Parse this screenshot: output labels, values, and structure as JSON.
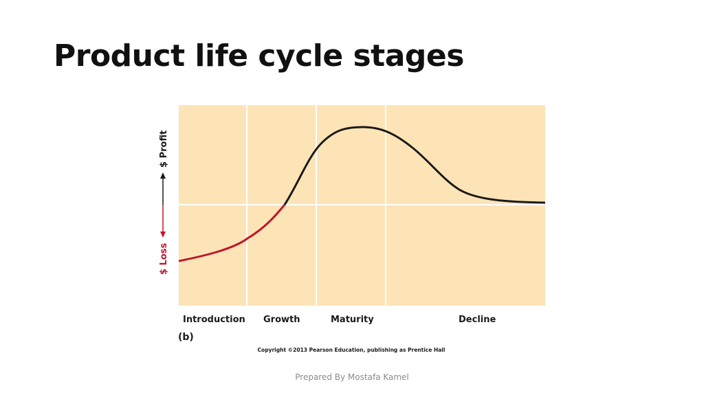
{
  "slide": {
    "title": "Product life cycle stages",
    "footer": "Prepared By Mostafa Kamel"
  },
  "diagram": {
    "y_axis": {
      "profit_label": "$ Profit",
      "loss_label": "$ Loss"
    },
    "stages": [
      "Introduction",
      "Growth",
      "Maturity",
      "Decline"
    ],
    "panel_label": "(b)",
    "copyright": "Copyright ©2013 Pearson Education, publishing as Prentice Hall",
    "colors": {
      "background": "#fde4b6",
      "gridline": "#ffffff",
      "profit_curve": "#1a1a1a",
      "loss_curve": "#c0162c"
    }
  }
}
